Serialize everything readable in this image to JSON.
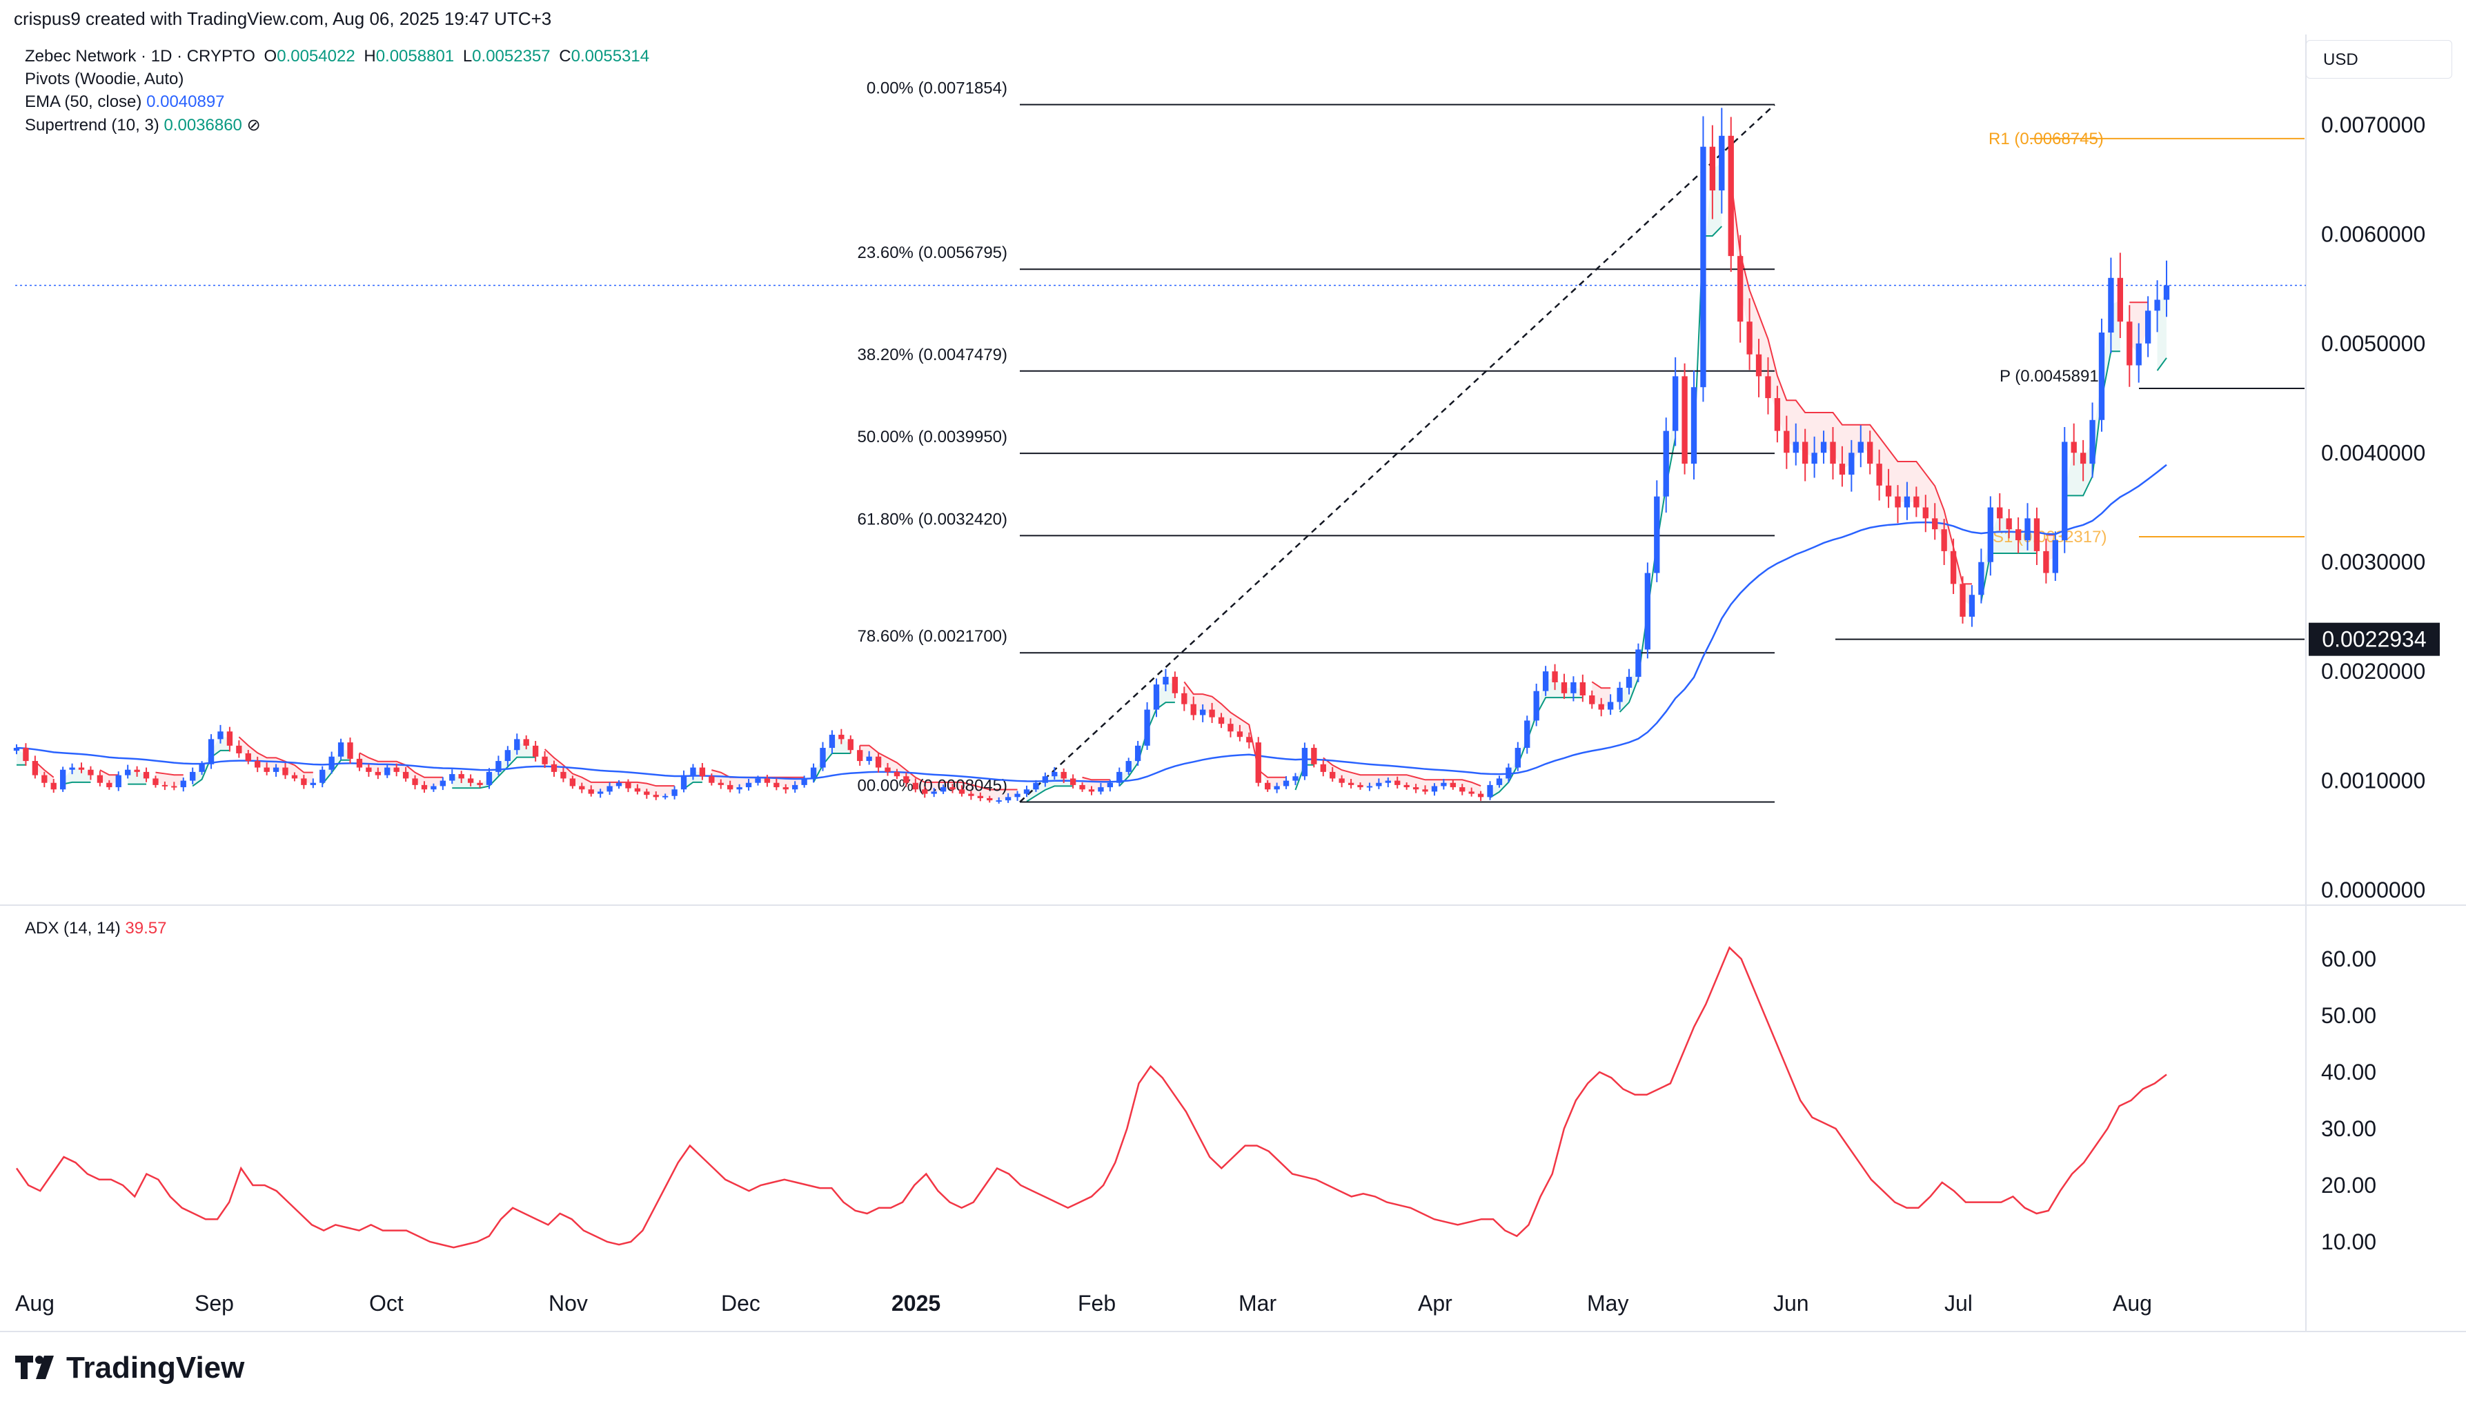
{
  "credit": "crispus9 created with TradingView.com, Aug 06, 2025 19:47 UTC+3",
  "symbol": {
    "name": "Zebec Network · 1D · CRYPTO",
    "o_label": "O",
    "o": "0.0054022",
    "h_label": "H",
    "h": "0.0058801",
    "l_label": "L",
    "l": "0.0052357",
    "c_label": "C",
    "c": "0.0055314"
  },
  "indicators": {
    "pivots": "Pivots (Woodie, Auto)",
    "ema_label": "EMA (50, close)",
    "ema_value": "0.0040897",
    "supertrend_label": "Supertrend (10, 3)",
    "supertrend_value": "0.0036860",
    "adx_label": "ADX (14, 14)",
    "adx_value": "39.57"
  },
  "currency": "USD",
  "brand": "TradingView",
  "colors": {
    "up": "#2962ff",
    "down": "#f23645",
    "ema": "#2962ff",
    "supertrend_up": "#089981",
    "supertrend_down": "#f23645",
    "pivot_r": "#f7a21b",
    "adx": "#f23645",
    "fib": "#131722"
  },
  "chart_data": [
    {
      "type": "candlestick",
      "x_ticks": [
        "Aug",
        "Sep",
        "Oct",
        "Nov",
        "Dec",
        "2025",
        "Feb",
        "Mar",
        "Apr",
        "May",
        "Jun",
        "Jul",
        "Aug"
      ],
      "y_ticks": [
        "0.0070000",
        "0.0060000",
        "0.0050000",
        "0.0040000",
        "0.0030000",
        "0.0020000",
        "0.0010000",
        "0.0000000"
      ],
      "ylim": [
        0,
        0.0076
      ],
      "last_price": 0.0055314,
      "price_marker": "0.0022934",
      "fib_levels": [
        {
          "label": "0.00% (0.0071854)",
          "value": 0.0071854
        },
        {
          "label": "23.60% (0.0056795)",
          "value": 0.0056795
        },
        {
          "label": "38.20% (0.0047479)",
          "value": 0.0047479
        },
        {
          "label": "50.00% (0.0039950)",
          "value": 0.003995
        },
        {
          "label": "61.80% (0.0032420)",
          "value": 0.003242
        },
        {
          "label": "78.60% (0.0021700)",
          "value": 0.00217
        },
        {
          "label": "00.00% (0.0008045)",
          "value": 0.0008045
        }
      ],
      "pivots": [
        {
          "label": "R1 (0.0068745)",
          "value": 0.0068745
        },
        {
          "label": "P (0.0045891)",
          "value": 0.0045891
        },
        {
          "label": "S1 (0.0032317)",
          "value": 0.0032317
        }
      ],
      "series": [
        {
          "name": "Close",
          "values": [
            0.0013,
            0.00118,
            0.00105,
            0.00098,
            0.00092,
            0.0011,
            0.00112,
            0.0011,
            0.00105,
            0.00098,
            0.00094,
            0.00105,
            0.0011,
            0.00108,
            0.00102,
            0.00096,
            0.00095,
            0.00094,
            0.001,
            0.00108,
            0.00115,
            0.00138,
            0.00145,
            0.00132,
            0.00125,
            0.00118,
            0.00112,
            0.00108,
            0.00112,
            0.00105,
            0.00102,
            0.00096,
            0.00098,
            0.0011,
            0.00122,
            0.00135,
            0.0012,
            0.00112,
            0.00108,
            0.00105,
            0.00112,
            0.00108,
            0.00102,
            0.00096,
            0.00092,
            0.00095,
            0.001,
            0.00106,
            0.00102,
            0.00098,
            0.00096,
            0.00108,
            0.00118,
            0.00128,
            0.00138,
            0.00132,
            0.00122,
            0.00115,
            0.00108,
            0.00102,
            0.00095,
            0.00092,
            0.00088,
            0.0009,
            0.00095,
            0.00098,
            0.00093,
            0.0009,
            0.00087,
            0.00085,
            0.00086,
            0.00092,
            0.00105,
            0.00112,
            0.00104,
            0.00098,
            0.00096,
            0.00092,
            0.00094,
            0.00098,
            0.00102,
            0.00098,
            0.00094,
            0.00092,
            0.00096,
            0.00102,
            0.00112,
            0.0013,
            0.00142,
            0.00138,
            0.00128,
            0.00118,
            0.00122,
            0.00112,
            0.00108,
            0.00104,
            0.00098,
            0.00092,
            0.00088,
            0.0009,
            0.00094,
            0.00092,
            0.00088,
            0.00086,
            0.00084,
            0.00082,
            0.00082,
            0.00085,
            0.00088,
            0.00092,
            0.00098,
            0.00104,
            0.00108,
            0.00102,
            0.00096,
            0.00092,
            0.0009,
            0.00094,
            0.00098,
            0.00108,
            0.00118,
            0.00132,
            0.00165,
            0.00188,
            0.00195,
            0.0018,
            0.0017,
            0.0016,
            0.00165,
            0.00158,
            0.00152,
            0.00145,
            0.0014,
            0.00135,
            0.00098,
            0.00092,
            0.00095,
            0.001,
            0.00104,
            0.0013,
            0.00115,
            0.00108,
            0.00102,
            0.00098,
            0.00096,
            0.00094,
            0.00095,
            0.00098,
            0.001,
            0.00096,
            0.00094,
            0.00092,
            0.0009,
            0.00095,
            0.00098,
            0.00094,
            0.0009,
            0.00088,
            0.00085,
            0.00096,
            0.00102,
            0.00112,
            0.0013,
            0.00155,
            0.00182,
            0.002,
            0.0019,
            0.0018,
            0.0019,
            0.00178,
            0.0017,
            0.00165,
            0.00172,
            0.00185,
            0.00195,
            0.0022,
            0.0029,
            0.0036,
            0.0042,
            0.0047,
            0.0039,
            0.0046,
            0.0068,
            0.0064,
            0.0069,
            0.0058,
            0.0052,
            0.0049,
            0.0047,
            0.0045,
            0.0042,
            0.004,
            0.0041,
            0.0039,
            0.004,
            0.0041,
            0.0039,
            0.0038,
            0.004,
            0.0041,
            0.0039,
            0.0037,
            0.0036,
            0.0035,
            0.0036,
            0.0035,
            0.0034,
            0.0033,
            0.0031,
            0.0028,
            0.0025,
            0.0027,
            0.003,
            0.0035,
            0.0034,
            0.0033,
            0.0032,
            0.0034,
            0.0031,
            0.0029,
            0.0032,
            0.0041,
            0.004,
            0.0039,
            0.0043,
            0.0051,
            0.0056,
            0.0052,
            0.0048,
            0.005,
            0.0053,
            0.0054,
            0.0055314
          ]
        }
      ]
    },
    {
      "type": "line",
      "name": "ADX (14, 14)",
      "y_ticks": [
        "60.00",
        "50.00",
        "40.00",
        "30.00",
        "20.00",
        "10.00"
      ],
      "ylim": [
        5,
        65
      ],
      "series": [
        {
          "name": "ADX",
          "values": [
            23,
            20,
            19,
            22,
            25,
            24,
            22,
            21,
            21,
            20,
            18,
            22,
            21,
            18,
            16,
            15,
            14,
            14,
            17,
            23,
            20,
            20,
            19,
            17,
            15,
            13,
            12,
            13,
            12.5,
            12,
            13,
            12,
            12,
            12,
            11,
            10,
            9.5,
            9,
            9.5,
            10,
            11,
            14,
            16,
            15,
            14,
            13,
            15,
            14,
            12,
            11,
            10,
            9.5,
            10,
            12,
            16,
            20,
            24,
            27,
            25,
            23,
            21,
            20,
            19,
            20,
            20.5,
            21,
            20.5,
            20,
            19.5,
            19.5,
            17,
            15.5,
            15,
            16,
            16,
            17,
            20,
            22,
            19,
            17,
            16,
            17,
            20,
            23,
            22,
            20,
            19,
            18,
            17,
            16,
            17,
            18,
            20,
            24,
            30,
            38,
            41,
            39,
            36,
            33,
            29,
            25,
            23,
            25,
            27,
            27,
            26,
            24,
            22,
            21.5,
            21,
            20,
            19,
            18,
            18.5,
            18,
            17,
            16.5,
            16,
            15,
            14,
            13.5,
            13,
            13.5,
            14,
            14,
            12,
            11,
            13,
            18,
            22,
            30,
            35,
            38,
            40,
            39,
            37,
            36,
            36,
            37,
            38,
            43,
            48,
            52,
            57,
            62,
            60,
            55,
            50,
            45,
            40,
            35,
            32,
            31,
            30,
            27,
            24,
            21,
            19,
            17,
            16,
            16,
            18,
            20.5,
            19,
            17,
            17,
            17,
            17,
            18,
            16,
            15,
            15.5,
            19,
            22,
            24,
            27,
            30,
            34,
            35,
            37,
            38,
            39.57
          ]
        }
      ]
    }
  ]
}
